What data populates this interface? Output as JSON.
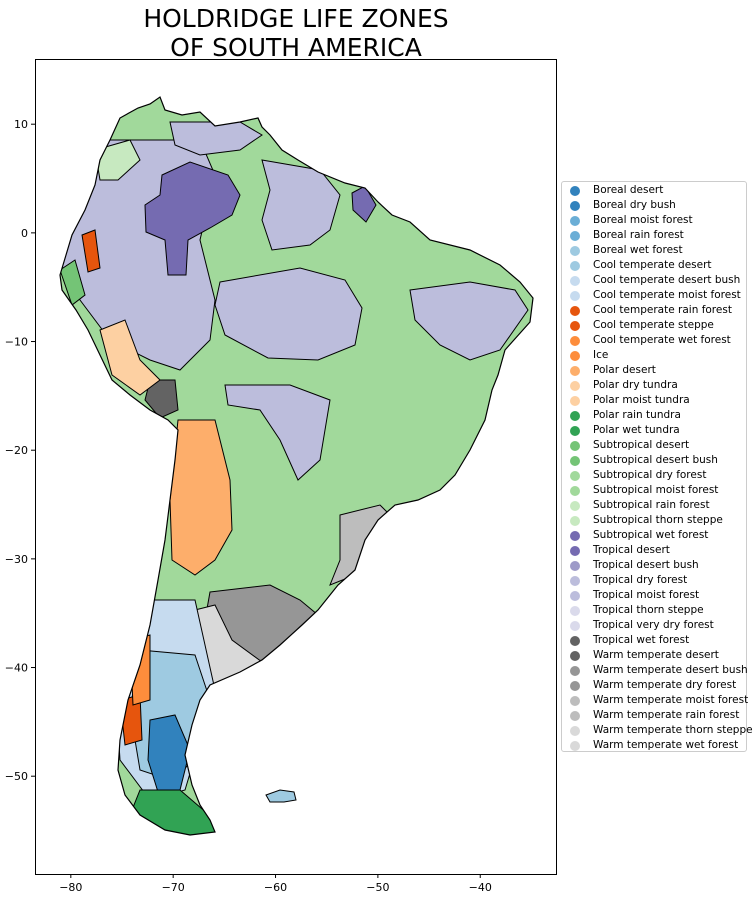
{
  "title": {
    "line1": "HOLDRIDGE LIFE ZONES",
    "line2": "OF SOUTH AMERICA"
  },
  "axes": {
    "x_ticks": [
      {
        "value": -80,
        "label": "−80"
      },
      {
        "value": -70,
        "label": "−70"
      },
      {
        "value": -60,
        "label": "−60"
      },
      {
        "value": -50,
        "label": "−50"
      },
      {
        "value": -40,
        "label": "−40"
      }
    ],
    "y_ticks": [
      {
        "value": 10,
        "label": "10"
      },
      {
        "value": 0,
        "label": "0"
      },
      {
        "value": -10,
        "label": "−10"
      },
      {
        "value": -20,
        "label": "−20"
      },
      {
        "value": -30,
        "label": "−30"
      },
      {
        "value": -40,
        "label": "−40"
      },
      {
        "value": -50,
        "label": "−50"
      }
    ],
    "xlim": [
      -83.5,
      -32.5
    ],
    "ylim": [
      -59,
      16
    ]
  },
  "legend": {
    "items": [
      {
        "label": "Boreal desert",
        "color": "#3182bd"
      },
      {
        "label": "Boreal dry bush",
        "color": "#3182bd"
      },
      {
        "label": "Boreal moist forest",
        "color": "#6baed6"
      },
      {
        "label": "Boreal rain forest",
        "color": "#6baed6"
      },
      {
        "label": "Boreal wet forest",
        "color": "#9ecae1"
      },
      {
        "label": "Cool temperate desert",
        "color": "#9ecae1"
      },
      {
        "label": "Cool temperate desert bush",
        "color": "#c6dbef"
      },
      {
        "label": "Cool temperate moist forest",
        "color": "#c6dbef"
      },
      {
        "label": "Cool temperate rain forest",
        "color": "#e6550d"
      },
      {
        "label": "Cool temperate steppe",
        "color": "#e6550d"
      },
      {
        "label": "Cool temperate wet forest",
        "color": "#fd8d3c"
      },
      {
        "label": "Ice",
        "color": "#fd8d3c"
      },
      {
        "label": "Polar desert",
        "color": "#fdae6b"
      },
      {
        "label": "Polar dry tundra",
        "color": "#fdd0a2"
      },
      {
        "label": "Polar moist tundra",
        "color": "#fdd0a2"
      },
      {
        "label": "Polar rain tundra",
        "color": "#31a354"
      },
      {
        "label": "Polar wet tundra",
        "color": "#31a354"
      },
      {
        "label": "Subtropical desert",
        "color": "#74c476"
      },
      {
        "label": "Subtropical desert bush",
        "color": "#74c476"
      },
      {
        "label": "Subtropical dry forest",
        "color": "#a1d99b"
      },
      {
        "label": "Subtropical moist forest",
        "color": "#a1d99b"
      },
      {
        "label": "Subtropical rain forest",
        "color": "#c7e9c0"
      },
      {
        "label": "Subtropical thorn steppe",
        "color": "#c7e9c0"
      },
      {
        "label": "Subtropical wet forest",
        "color": "#756bb1"
      },
      {
        "label": "Tropical desert",
        "color": "#756bb1"
      },
      {
        "label": "Tropical desert bush",
        "color": "#9e9ac8"
      },
      {
        "label": "Tropical dry forest",
        "color": "#bcbddc"
      },
      {
        "label": "Tropical moist forest",
        "color": "#bcbddc"
      },
      {
        "label": "Tropical thorn steppe",
        "color": "#dadaeb"
      },
      {
        "label": "Tropical very dry forest",
        "color": "#dadaeb"
      },
      {
        "label": "Tropical wet forest",
        "color": "#636363"
      },
      {
        "label": "Warm temperate desert",
        "color": "#636363"
      },
      {
        "label": "Warm temperate desert bush",
        "color": "#969696"
      },
      {
        "label": "Warm temperate dry forest",
        "color": "#969696"
      },
      {
        "label": "Warm temperate moist forest",
        "color": "#bdbdbd"
      },
      {
        "label": "Warm temperate rain forest",
        "color": "#bdbdbd"
      },
      {
        "label": "Warm temperate thorn steppe",
        "color": "#d9d9d9"
      },
      {
        "label": "Warm temperate wet forest",
        "color": "#d9d9d9"
      }
    ]
  }
}
